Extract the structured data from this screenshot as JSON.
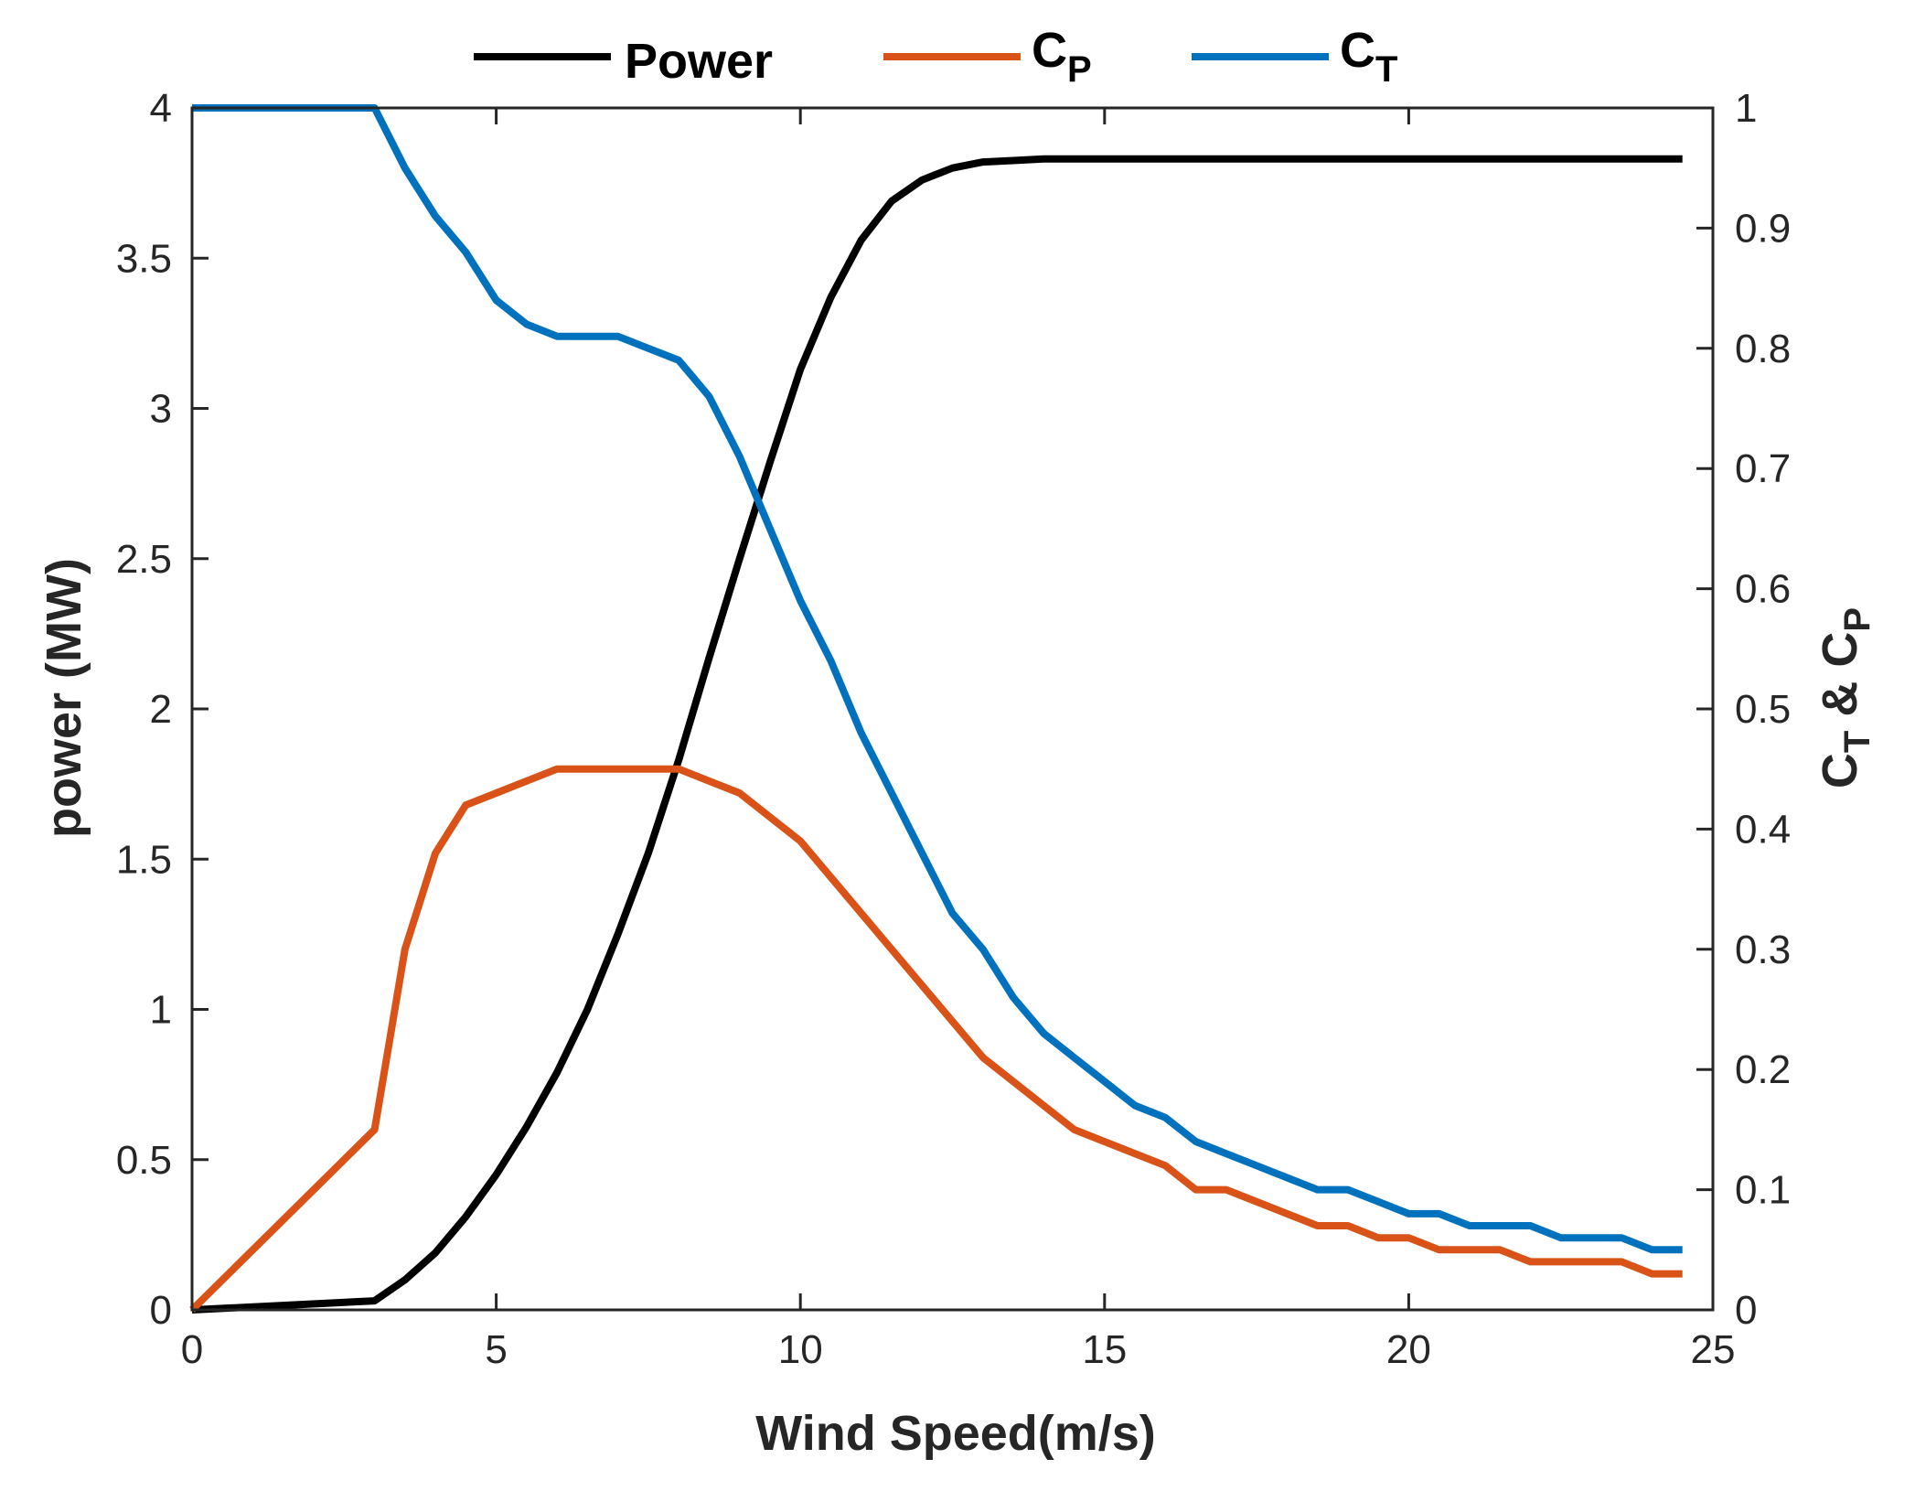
{
  "chart_data": {
    "type": "line",
    "title": "",
    "xlabel": "Wind Speed(m/s)",
    "ylabel_left": "power (MW)",
    "ylabel_right": {
      "main1": "C",
      "sub1": "T",
      "mid": " & ",
      "main2": "C",
      "sub2": "P"
    },
    "xlim": [
      0,
      25
    ],
    "ylim_left": [
      0,
      4
    ],
    "ylim_right": [
      0,
      1
    ],
    "xticks": [
      "0",
      "5",
      "10",
      "15",
      "20",
      "25"
    ],
    "yticks_left": [
      "0",
      "0.5",
      "1",
      "1.5",
      "2",
      "2.5",
      "3",
      "3.5",
      "4"
    ],
    "yticks_right": [
      "0",
      "0.1",
      "0.2",
      "0.3",
      "0.4",
      "0.5",
      "0.6",
      "0.7",
      "0.8",
      "0.9",
      "1"
    ],
    "legend": {
      "placement": "top-outside",
      "entries": [
        {
          "label": "Power",
          "main": "Power",
          "sub": ""
        },
        {
          "label": "C_P",
          "main": "C",
          "sub": "P"
        },
        {
          "label": "C_T",
          "main": "C",
          "sub": "T"
        }
      ]
    },
    "series": [
      {
        "name": "Power",
        "axis": "left",
        "color": "#000000",
        "x": [
          0,
          3,
          3.5,
          4,
          4.5,
          5,
          5.5,
          6,
          6.5,
          7,
          7.5,
          8,
          8.5,
          9,
          9.5,
          10,
          10.5,
          11,
          11.5,
          12,
          12.5,
          13,
          13.5,
          14,
          15,
          16,
          17,
          18,
          19,
          20,
          21,
          22,
          23,
          24,
          24.5
        ],
        "y": [
          0,
          0.03,
          0.1,
          0.19,
          0.31,
          0.45,
          0.61,
          0.79,
          1.0,
          1.25,
          1.52,
          1.83,
          2.17,
          2.5,
          2.82,
          3.13,
          3.37,
          3.56,
          3.69,
          3.76,
          3.8,
          3.82,
          3.825,
          3.83,
          3.83,
          3.83,
          3.83,
          3.83,
          3.83,
          3.83,
          3.83,
          3.83,
          3.83,
          3.83,
          3.83
        ]
      },
      {
        "name": "C_P",
        "axis": "right",
        "color": "#d95319",
        "x": [
          0,
          3,
          3.5,
          4,
          4.5,
          5,
          5.5,
          6,
          6.5,
          7,
          7.5,
          8,
          9,
          10,
          12,
          13,
          14.5,
          16,
          16.5,
          17,
          18.5,
          19,
          19.5,
          20,
          20.5,
          21,
          21.5,
          22,
          22.5,
          23,
          23.5,
          24,
          24.5
        ],
        "y": [
          0,
          0.15,
          0.3,
          0.38,
          0.42,
          0.43,
          0.44,
          0.45,
          0.45,
          0.45,
          0.45,
          0.45,
          0.43,
          0.39,
          0.27,
          0.21,
          0.15,
          0.12,
          0.1,
          0.1,
          0.07,
          0.07,
          0.06,
          0.06,
          0.05,
          0.05,
          0.05,
          0.04,
          0.04,
          0.04,
          0.04,
          0.03,
          0.03
        ]
      },
      {
        "name": "C_T",
        "axis": "right",
        "color": "#0072bd",
        "x": [
          0,
          3,
          3.5,
          4,
          4.5,
          5,
          5.5,
          6,
          6.5,
          7,
          7.5,
          8,
          8.5,
          9,
          9.5,
          10,
          10.5,
          11,
          11.5,
          12,
          12.5,
          13,
          13.5,
          14,
          14.5,
          15,
          15.5,
          16,
          16.5,
          17,
          17.5,
          18,
          18.5,
          19,
          19.5,
          20,
          20.5,
          21,
          21.5,
          22,
          22.5,
          23,
          23.5,
          24,
          24.5
        ],
        "y": [
          1.0,
          1.0,
          0.95,
          0.91,
          0.88,
          0.84,
          0.82,
          0.81,
          0.81,
          0.81,
          0.8,
          0.79,
          0.76,
          0.71,
          0.65,
          0.59,
          0.54,
          0.48,
          0.43,
          0.38,
          0.33,
          0.3,
          0.26,
          0.23,
          0.21,
          0.19,
          0.17,
          0.16,
          0.14,
          0.13,
          0.12,
          0.11,
          0.1,
          0.1,
          0.09,
          0.08,
          0.08,
          0.07,
          0.07,
          0.07,
          0.06,
          0.06,
          0.06,
          0.05,
          0.05
        ]
      }
    ]
  }
}
